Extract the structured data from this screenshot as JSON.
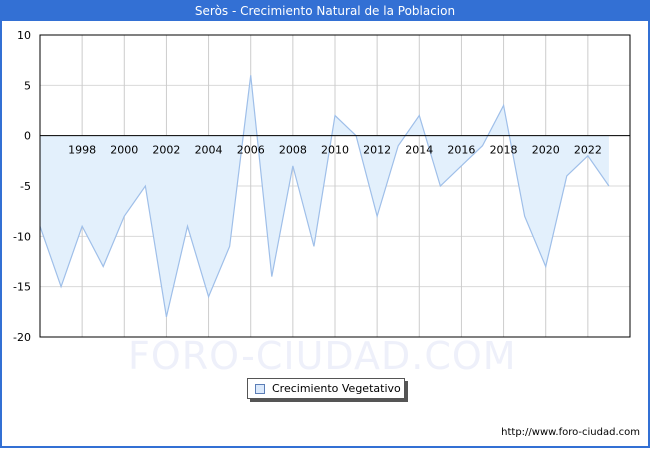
{
  "header": {
    "title": "Seròs - Crecimiento Natural de la Poblacion"
  },
  "legend": {
    "label": "Crecimiento Vegetativo",
    "swatch_color": "#dbe9fb"
  },
  "watermark": "FORO-CIUDAD.COM",
  "footer": {
    "url": "http://www.foro-ciudad.com"
  },
  "colors": {
    "title_bar": "#3370d4",
    "line": "#9fbfe9",
    "fill": "#e3f0fc",
    "grid": "#d9d9d9"
  },
  "chart_data": {
    "type": "area",
    "title": "Seròs - Crecimiento Natural de la Poblacion",
    "xlabel": "",
    "ylabel": "",
    "x": [
      1996,
      1997,
      1998,
      1999,
      2000,
      2001,
      2002,
      2003,
      2004,
      2005,
      2006,
      2007,
      2008,
      2009,
      2010,
      2011,
      2012,
      2013,
      2014,
      2015,
      2016,
      2017,
      2018,
      2019,
      2020,
      2021,
      2022,
      2023
    ],
    "series": [
      {
        "name": "Crecimiento Vegetativo",
        "values": [
          -9,
          -15,
          -9,
          -13,
          -8,
          -5,
          -18,
          -9,
          -16,
          -11,
          6,
          -14,
          -3,
          -11,
          2,
          0,
          -8,
          -1,
          2,
          -5,
          -3,
          -1,
          3,
          -8,
          -13,
          -4,
          -2,
          -5
        ]
      }
    ],
    "x_tick_labels": [
      "1998",
      "2000",
      "2002",
      "2004",
      "2006",
      "2008",
      "2010",
      "2012",
      "2014",
      "2016",
      "2018",
      "2020",
      "2022"
    ],
    "y_tick_labels": [
      "10",
      "5",
      "0",
      "-5",
      "-10",
      "-15",
      "-20"
    ],
    "ylim": [
      -20,
      10
    ],
    "xlim": [
      1996,
      2024
    ],
    "grid": true,
    "legend_position": "bottom"
  }
}
